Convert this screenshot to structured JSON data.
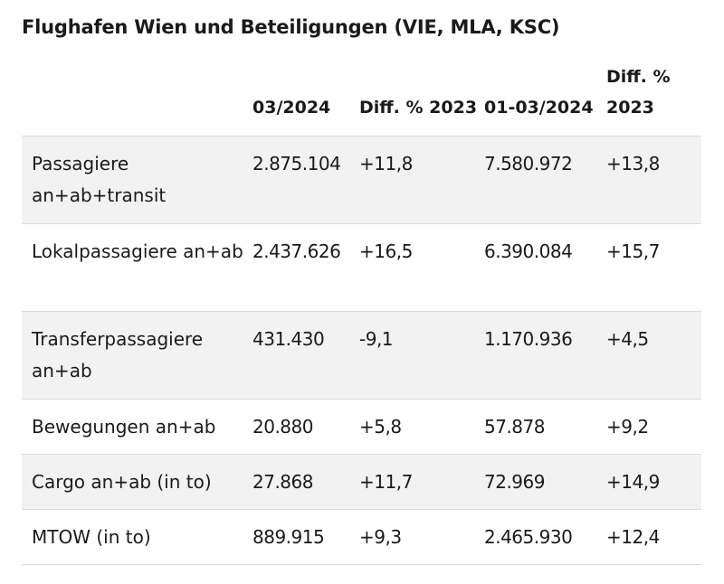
{
  "title": "Flughafen Wien und Beteiligungen (VIE, MLA, KSC)",
  "table": {
    "headers": [
      "",
      "03/2024",
      "Diff. % 2023",
      "01-03/2024",
      "Diff. % 2023"
    ],
    "rows": [
      {
        "label": "Passagiere an+ab+transit",
        "v1": "2.875.104",
        "d1": "+11,8",
        "v2": "7.580.972",
        "d2": "+13,8"
      },
      {
        "label": "Lokalpassagiere an+ab",
        "v1": "2.437.626",
        "d1": "+16,5",
        "v2": "6.390.084",
        "d2": "+15,7"
      },
      {
        "label": "Transferpassagiere an+ab",
        "v1": "431.430",
        "d1": "-9,1",
        "v2": "1.170.936",
        "d2": "+4,5"
      },
      {
        "label": "Bewegungen an+ab",
        "v1": "20.880",
        "d1": "+5,8",
        "v2": "57.878",
        "d2": "+9,2"
      },
      {
        "label": "Cargo an+ab (in to)",
        "v1": "27.868",
        "d1": "+11,7",
        "v2": "72.969",
        "d2": "+14,9"
      },
      {
        "label": "MTOW (in to)",
        "v1": "889.915",
        "d1": "+9,3",
        "v2": "2.465.930",
        "d2": "+12,4"
      }
    ]
  },
  "colors": {
    "row_shade": "#f2f2f2",
    "divider": "#dcdcdc",
    "text": "#1a1a1a"
  }
}
